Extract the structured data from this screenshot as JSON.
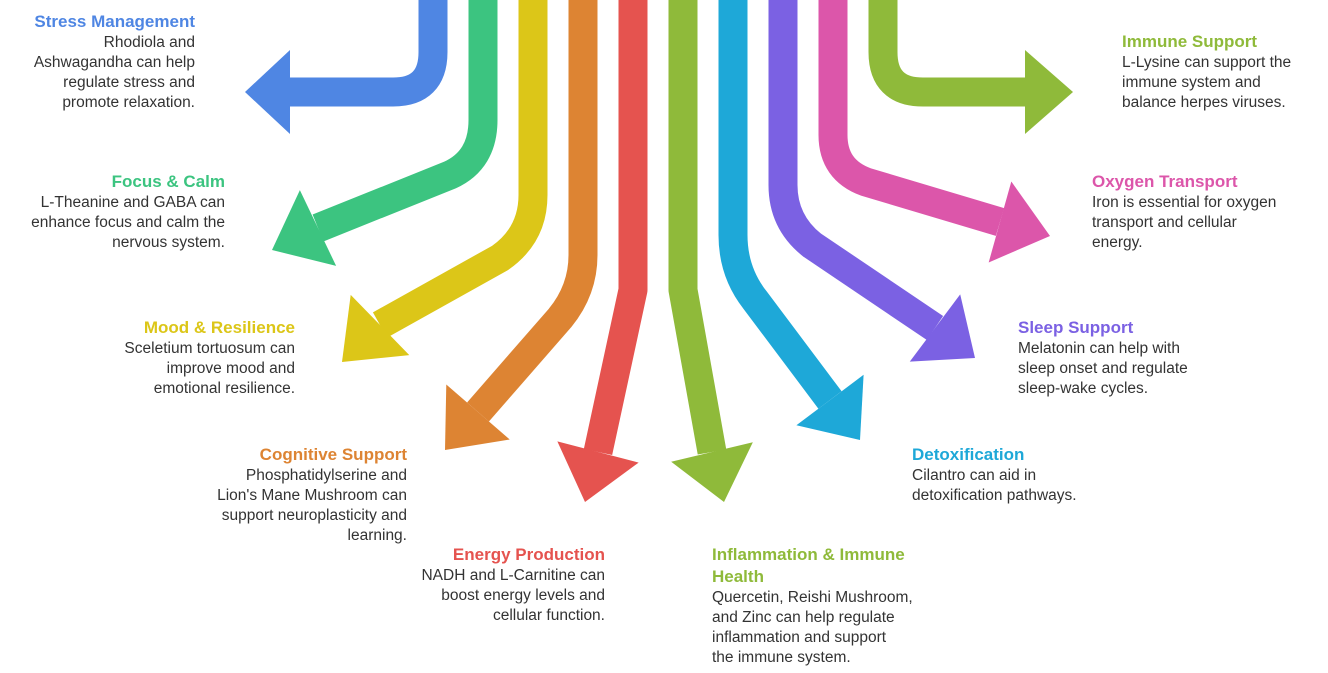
{
  "items": [
    {
      "title": "Stress Management",
      "color": "#4f86e3",
      "lines": [
        "Rhodiola and",
        "Ashwagandha can help",
        "regulate stress and",
        "promote relaxation."
      ]
    },
    {
      "title": "Focus & Calm",
      "color": "#3cc480",
      "lines": [
        "L-Theanine and GABA can",
        "enhance focus and calm the",
        "nervous system."
      ]
    },
    {
      "title": "Mood & Resilience",
      "color": "#dcc618",
      "lines": [
        "Sceletium tortuosum can",
        "improve mood and",
        "emotional resilience."
      ]
    },
    {
      "title": "Cognitive Support",
      "color": "#dd8433",
      "lines": [
        "Phosphatidylserine and",
        "Lion's Mane Mushroom can",
        "support neuroplasticity and",
        "learning."
      ]
    },
    {
      "title": "Energy Production",
      "color": "#e5534f",
      "lines": [
        "NADH and L-Carnitine can",
        "boost energy levels and",
        "cellular function."
      ]
    },
    {
      "title": "Inflammation & Immune Health",
      "color": "#8fba3a",
      "lines": [
        "Quercetin, Reishi Mushroom,",
        "and Zinc can help regulate",
        "inflammation and support",
        "the immune system."
      ]
    },
    {
      "title": "Detoxification",
      "color": "#1ea8d8",
      "lines": [
        "Cilantro can aid in",
        "detoxification pathways."
      ]
    },
    {
      "title": "Sleep Support",
      "color": "#7b61e3",
      "lines": [
        "Melatonin can help with",
        "sleep onset and regulate",
        "sleep-wake cycles."
      ]
    },
    {
      "title": "Oxygen Transport",
      "color": "#dc56aa",
      "lines": [
        "Iron is essential for oxygen",
        "transport and cellular",
        "energy."
      ]
    },
    {
      "title": "Immune Support",
      "color": "#8fba3a",
      "lines": [
        "L-Lysine can support the",
        "immune system and",
        "balance herpes viruses."
      ]
    }
  ]
}
